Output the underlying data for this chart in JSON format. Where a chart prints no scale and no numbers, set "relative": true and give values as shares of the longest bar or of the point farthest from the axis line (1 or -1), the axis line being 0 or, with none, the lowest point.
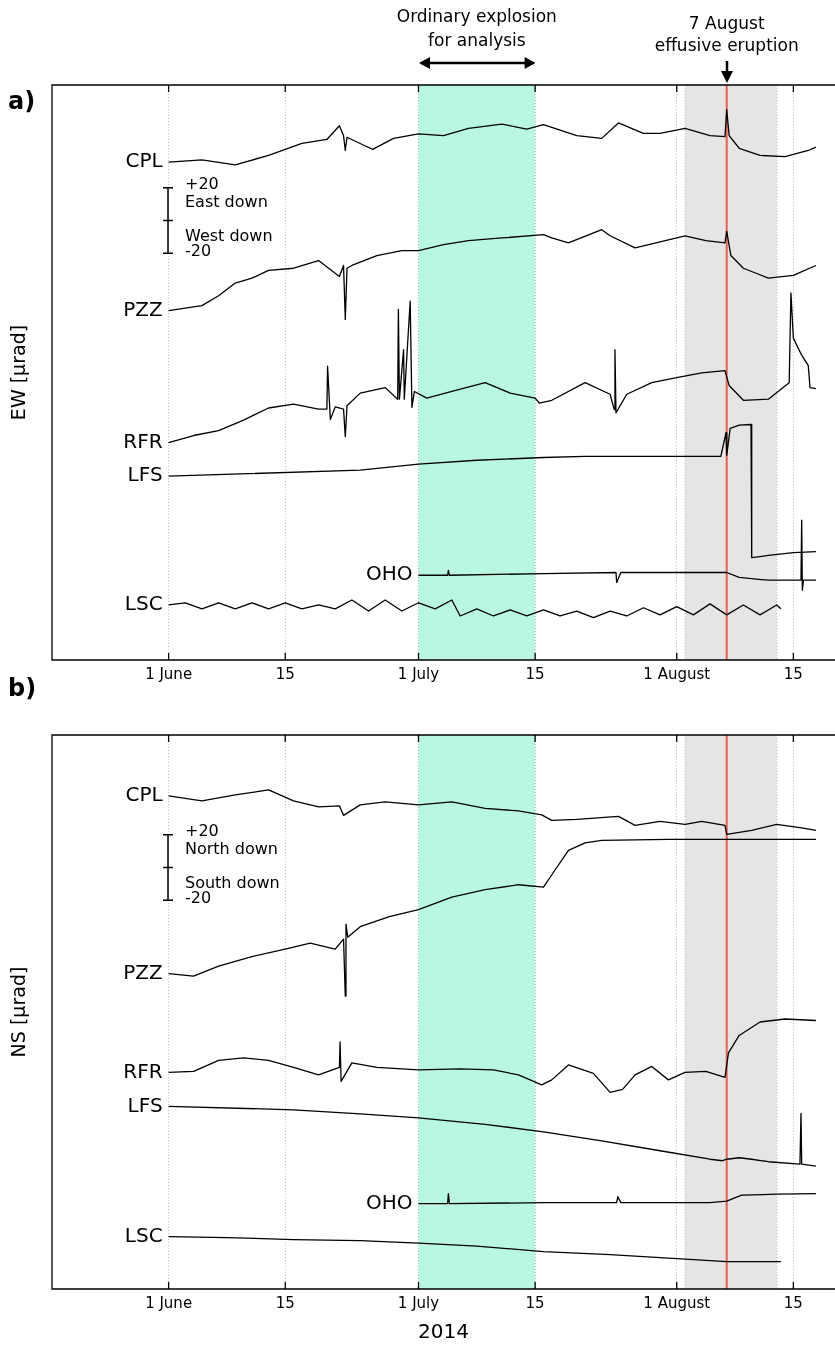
{
  "chart_data": [
    {
      "type": "line",
      "ylabel": "EW [μrad]",
      "annotations": [
        "a)",
        "+20",
        "East down",
        "West down",
        "-20"
      ],
      "relative": true,
      "grid": "x",
      "legend": false,
      "marker": "none",
      "xlim": [
        "2014-05-18",
        "2014-08-20"
      ],
      "xticks": [
        {
          "value": "2014-06-01",
          "label": "1 June"
        },
        {
          "value": "2014-06-15",
          "label": "15"
        },
        {
          "value": "2014-07-01",
          "label": "1 July"
        },
        {
          "value": "2014-07-15",
          "label": "15"
        },
        {
          "value": "2014-08-01",
          "label": "1 August"
        },
        {
          "value": "2014-08-15",
          "label": "15"
        }
      ],
      "bands": [
        {
          "axis": "x",
          "from": "2014-07-01",
          "to": "2014-07-15",
          "label": "Ordinary explosion for analysis",
          "color": "#b8f8e3"
        },
        {
          "axis": "x",
          "from": "2014-08-02",
          "to": "2014-08-13",
          "color": "#e5e5e5"
        }
      ],
      "ref_lines": [
        {
          "axis": "x",
          "value": "2014-08-07",
          "label": "7 August effusive eruption",
          "color": "#e8604c"
        }
      ],
      "series": [
        {
          "name": "CPL",
          "color": "#000000",
          "x": [
            "2014-06-01",
            "2014-06-05",
            "2014-06-09",
            "2014-06-13",
            "2014-06-17",
            "2014-06-20",
            "2014-06-21T12:00",
            "2014-06-22",
            "2014-06-22T05:00",
            "2014-06-22T10:00",
            "2014-06-24T12:00",
            "2014-06-25T12:00",
            "2014-06-28",
            "2014-07-01",
            "2014-07-04",
            "2014-07-07",
            "2014-07-11",
            "2014-07-14",
            "2014-07-16",
            "2014-07-20",
            "2014-07-23",
            "2014-07-25",
            "2014-07-28",
            "2014-07-30",
            "2014-08-02",
            "2014-08-05",
            "2014-08-06T19:00",
            "2014-08-07",
            "2014-08-07T07:00",
            "2014-08-08T12:00",
            "2014-08-11",
            "2014-08-14",
            "2014-08-16T19:00",
            "2014-08-17T17:00"
          ],
          "values": [
            0.905,
            0.909,
            0.9,
            0.917,
            0.939,
            0.946,
            0.971,
            0.953,
            0.926,
            0.95,
            0.935,
            0.928,
            0.948,
            0.956,
            0.953,
            0.966,
            0.974,
            0.965,
            0.973,
            0.953,
            0.948,
            0.976,
            0.957,
            0.957,
            0.966,
            0.953,
            0.951,
            1,
            0.953,
            0.93,
            0.917,
            0.915,
            0.926,
            0.932
          ]
        },
        {
          "name": "PZZ",
          "color": "#000000",
          "x": [
            "2014-06-01",
            "2014-06-05",
            "2014-06-07",
            "2014-06-09",
            "2014-06-11",
            "2014-06-13",
            "2014-06-16",
            "2014-06-19",
            "2014-06-21T12:00",
            "2014-06-22",
            "2014-06-22T05:00",
            "2014-06-22T10:00",
            "2014-06-23",
            "2014-06-26",
            "2014-06-29",
            "2014-07-01",
            "2014-07-04",
            "2014-07-07",
            "2014-07-11",
            "2014-07-16",
            "2014-07-17",
            "2014-07-19",
            "2014-07-23",
            "2014-07-24",
            "2014-07-27",
            "2014-07-30",
            "2014-08-02",
            "2014-08-04T12:00",
            "2014-08-06T19:00",
            "2014-08-07",
            "2014-08-07T12:00",
            "2014-08-09",
            "2014-08-12",
            "2014-08-15",
            "2014-08-17T17:00"
          ],
          "values": [
            0.635,
            0.644,
            0.662,
            0.685,
            0.694,
            0.708,
            0.712,
            0.726,
            0.697,
            0.717,
            0.619,
            0.712,
            0.717,
            0.735,
            0.744,
            0.744,
            0.755,
            0.762,
            0.767,
            0.773,
            0.767,
            0.758,
            0.782,
            0.771,
            0.749,
            0.76,
            0.771,
            0.762,
            0.758,
            0.779,
            0.735,
            0.712,
            0.694,
            0.699,
            0.717
          ]
        },
        {
          "name": "RFR",
          "color": "#000000",
          "x": [
            "2014-06-01",
            "2014-06-04",
            "2014-06-07",
            "2014-06-10",
            "2014-06-13",
            "2014-06-16",
            "2014-06-19",
            "2014-06-20",
            "2014-06-20T02:00",
            "2014-06-20T10:00",
            "2014-06-21",
            "2014-06-22",
            "2014-06-22T05:00",
            "2014-06-22T10:00",
            "2014-06-24",
            "2014-06-27",
            "2014-06-28T12:00",
            "2014-06-28T14:00",
            "2014-06-28T17:00",
            "2014-06-29T05:00",
            "2014-06-29T07:00",
            "2014-06-30",
            "2014-06-30T05:00",
            "2014-06-30T12:00",
            "2014-07-02",
            "2014-07-05",
            "2014-07-09",
            "2014-07-12",
            "2014-07-15",
            "2014-07-15T12:00",
            "2014-07-17",
            "2014-07-21",
            "2014-07-24",
            "2014-07-24T12:00",
            "2014-07-24T14:00",
            "2014-07-24T17:00",
            "2014-07-26",
            "2014-07-29",
            "2014-08-01",
            "2014-08-04",
            "2014-08-06T19:00",
            "2014-08-07T07:00",
            "2014-08-09",
            "2014-08-12",
            "2014-08-14T12:00",
            "2014-08-14T17:00",
            "2014-08-15",
            "2014-08-16",
            "2014-08-16T19:00",
            "2014-08-17",
            "2014-08-17T17:00"
          ],
          "values": [
            0.395,
            0.408,
            0.417,
            0.436,
            0.458,
            0.465,
            0.456,
            0.456,
            0.534,
            0.437,
            0.46,
            0.456,
            0.406,
            0.462,
            0.485,
            0.495,
            0.474,
            0.637,
            0.474,
            0.564,
            0.474,
            0.652,
            0.459,
            0.488,
            0.476,
            0.488,
            0.504,
            0.485,
            0.476,
            0.467,
            0.472,
            0.504,
            0.483,
            0.455,
            0.564,
            0.449,
            0.483,
            0.504,
            0.513,
            0.522,
            0.526,
            0.499,
            0.472,
            0.474,
            0.504,
            0.667,
            0.585,
            0.554,
            0.535,
            0.495,
            0.493
          ]
        },
        {
          "name": "LFS",
          "color": "#000000",
          "x": [
            "2014-06-01",
            "2014-06-24",
            "2014-07-01",
            "2014-07-08",
            "2014-07-16",
            "2014-07-21",
            "2014-08-06T07:00",
            "2014-08-06T22:00",
            "2014-08-07",
            "2014-08-07T10:00",
            "2014-08-08T12:00",
            "2014-08-09T22:00",
            "2014-08-10",
            "2014-08-12",
            "2014-08-15",
            "2014-08-17T17:00"
          ],
          "values": [
            0.334,
            0.345,
            0.356,
            0.363,
            0.368,
            0.37,
            0.37,
            0.413,
            0.372,
            0.421,
            0.427,
            0.428,
            0.186,
            0.19,
            0.195,
            0.197
          ]
        },
        {
          "name": "OHO",
          "color": "#000000",
          "x": [
            "2014-07-01",
            "2014-07-04T12:00",
            "2014-07-04T14:00",
            "2014-07-04T17:00",
            "2014-07-16",
            "2014-07-24T17:00",
            "2014-07-24T19:00",
            "2014-07-25T07:00",
            "2014-08-04",
            "2014-08-07",
            "2014-08-08T12:00",
            "2014-08-12",
            "2014-08-15T22:00",
            "2014-08-16",
            "2014-08-16T02:00",
            "2014-08-16T05:00",
            "2014-08-17T17:00"
          ],
          "values": [
            0.154,
            0.154,
            0.163,
            0.154,
            0.157,
            0.159,
            0.141,
            0.159,
            0.159,
            0.159,
            0.15,
            0.145,
            0.145,
            0.254,
            0.127,
            0.145,
            0.145
          ]
        },
        {
          "name": "LSC",
          "color": "#000000",
          "x": [
            "2014-06-01",
            "2014-06-03",
            "2014-06-05",
            "2014-06-07",
            "2014-06-09",
            "2014-06-11",
            "2014-06-13",
            "2014-06-15",
            "2014-06-17",
            "2014-06-19",
            "2014-06-21",
            "2014-06-23",
            "2014-06-25",
            "2014-06-27",
            "2014-06-29",
            "2014-07-01",
            "2014-07-03",
            "2014-07-05",
            "2014-07-06",
            "2014-07-08",
            "2014-07-10",
            "2014-07-12",
            "2014-07-14",
            "2014-07-16",
            "2014-07-18",
            "2014-07-20",
            "2014-07-22",
            "2014-07-24",
            "2014-07-26",
            "2014-07-28",
            "2014-07-30",
            "2014-08-01",
            "2014-08-03",
            "2014-08-05",
            "2014-08-07",
            "2014-08-09",
            "2014-08-11",
            "2014-08-13",
            "2014-08-13T12:00"
          ],
          "values": [
            0.1,
            0.104,
            0.093,
            0.104,
            0.093,
            0.104,
            0.093,
            0.104,
            0.093,
            0.1,
            0.093,
            0.109,
            0.089,
            0.109,
            0.089,
            0.104,
            0.093,
            0.109,
            0.08,
            0.093,
            0.08,
            0.091,
            0.08,
            0.091,
            0.08,
            0.089,
            0.077,
            0.089,
            0.08,
            0.095,
            0.082,
            0.097,
            0.082,
            0.102,
            0.082,
            0.1,
            0.082,
            0.1,
            0.093
          ]
        }
      ]
    },
    {
      "type": "line",
      "ylabel": "NS [μrad]",
      "xlabel": "2014",
      "annotations": [
        "b)",
        "+20",
        "North down",
        "South down",
        "-20"
      ],
      "relative": true,
      "grid": "x",
      "legend": false,
      "marker": "none",
      "xlim": [
        "2014-05-18",
        "2014-08-20"
      ],
      "xticks": [
        {
          "value": "2014-06-01",
          "label": "1 June"
        },
        {
          "value": "2014-06-15",
          "label": "15"
        },
        {
          "value": "2014-07-01",
          "label": "1 July"
        },
        {
          "value": "2014-07-15",
          "label": "15"
        },
        {
          "value": "2014-08-01",
          "label": "1 August"
        },
        {
          "value": "2014-08-15",
          "label": "15"
        }
      ],
      "bands": [
        {
          "axis": "x",
          "from": "2014-07-01",
          "to": "2014-07-15",
          "color": "#b8f8e3"
        },
        {
          "axis": "x",
          "from": "2014-08-02",
          "to": "2014-08-13",
          "color": "#e5e5e5"
        }
      ],
      "ref_lines": [
        {
          "axis": "x",
          "value": "2014-08-07",
          "color": "#e8604c"
        }
      ],
      "series": [
        {
          "name": "CPL",
          "color": "#000000",
          "x": [
            "2014-06-01",
            "2014-06-05",
            "2014-06-09",
            "2014-06-13",
            "2014-06-16",
            "2014-06-19",
            "2014-06-21T12:00",
            "2014-06-22",
            "2014-06-24",
            "2014-06-27",
            "2014-07-01",
            "2014-07-05",
            "2014-07-09",
            "2014-07-13",
            "2014-07-15T19:00",
            "2014-07-17",
            "2014-07-20",
            "2014-07-25",
            "2014-07-27",
            "2014-07-30",
            "2014-08-02",
            "2014-08-04",
            "2014-08-06T19:00",
            "2014-08-07",
            "2014-08-10",
            "2014-08-13",
            "2014-08-16",
            "2014-08-17T17:00"
          ],
          "values": [
            0.988,
            0.978,
            0.99,
            1,
            0.978,
            0.966,
            0.968,
            0.949,
            0.97,
            0.976,
            0.97,
            0.976,
            0.963,
            0.958,
            0.95,
            0.939,
            0.941,
            0.947,
            0.929,
            0.937,
            0.931,
            0.937,
            0.929,
            0.911,
            0.919,
            0.931,
            0.924,
            0.919
          ]
        },
        {
          "name": "PZZ",
          "color": "#000000",
          "x": [
            "2014-06-01",
            "2014-06-04",
            "2014-06-07",
            "2014-06-11",
            "2014-06-15",
            "2014-06-18",
            "2014-06-21",
            "2014-06-22",
            "2014-06-22T05:00",
            "2014-06-22T07:00",
            "2014-06-22T12:00",
            "2014-06-24",
            "2014-06-27T12:00",
            "2014-07-01",
            "2014-07-05",
            "2014-07-09",
            "2014-07-13",
            "2014-07-16",
            "2014-07-17",
            "2014-07-19",
            "2014-07-21",
            "2014-07-23",
            "2014-07-31",
            "2014-08-17T17:00"
          ],
          "values": [
            0.632,
            0.627,
            0.647,
            0.666,
            0.681,
            0.693,
            0.681,
            0.701,
            0.587,
            0.731,
            0.705,
            0.726,
            0.746,
            0.76,
            0.785,
            0.8,
            0.81,
            0.805,
            0.83,
            0.879,
            0.894,
            0.899,
            0.901,
            0.901
          ]
        },
        {
          "name": "RFR",
          "color": "#000000",
          "x": [
            "2014-06-01",
            "2014-06-04",
            "2014-06-07",
            "2014-06-10",
            "2014-06-13",
            "2014-06-16",
            "2014-06-19",
            "2014-06-21T12:00",
            "2014-06-21T14:00",
            "2014-06-21T17:00",
            "2014-06-23",
            "2014-06-26",
            "2014-07-01",
            "2014-07-06",
            "2014-07-10",
            "2014-07-13",
            "2014-07-15T19:00",
            "2014-07-17",
            "2014-07-19",
            "2014-07-22",
            "2014-07-24",
            "2014-07-25T12:00",
            "2014-07-27",
            "2014-07-29",
            "2014-07-31",
            "2014-08-02",
            "2014-08-04T12:00",
            "2014-08-06T19:00",
            "2014-08-07T05:00",
            "2014-08-08T12:00",
            "2014-08-11",
            "2014-08-14",
            "2014-08-17T17:00"
          ],
          "values": [
            0.434,
            0.436,
            0.458,
            0.463,
            0.458,
            0.444,
            0.429,
            0.444,
            0.495,
            0.416,
            0.453,
            0.444,
            0.439,
            0.441,
            0.439,
            0.429,
            0.409,
            0.419,
            0.449,
            0.432,
            0.394,
            0.4,
            0.429,
            0.446,
            0.419,
            0.434,
            0.436,
            0.424,
            0.473,
            0.508,
            0.535,
            0.541,
            0.538
          ]
        },
        {
          "name": "LFS",
          "color": "#000000",
          "x": [
            "2014-06-01",
            "2014-06-16",
            "2014-06-24",
            "2014-07-01",
            "2014-07-09",
            "2014-07-16",
            "2014-07-23",
            "2014-07-30",
            "2014-08-05",
            "2014-08-06T12:00",
            "2014-08-07",
            "2014-08-08T12:00",
            "2014-08-10",
            "2014-08-12",
            "2014-08-15T19:00",
            "2014-08-15T22:00",
            "2014-08-16",
            "2014-08-17T17:00"
          ],
          "values": [
            0.366,
            0.359,
            0.351,
            0.343,
            0.33,
            0.315,
            0.297,
            0.277,
            0.26,
            0.257,
            0.26,
            0.263,
            0.26,
            0.255,
            0.25,
            0.352,
            0.25,
            0.246
          ]
        },
        {
          "name": "OHO",
          "color": "#000000",
          "x": [
            "2014-07-01",
            "2014-07-04T12:00",
            "2014-07-04T14:00",
            "2014-07-04T17:00",
            "2014-07-16",
            "2014-07-24T19:00",
            "2014-07-24T22:00",
            "2014-07-25T07:00",
            "2014-08-05",
            "2014-08-07",
            "2014-08-08T19:00",
            "2014-08-13",
            "2014-08-17T17:00"
          ],
          "values": [
            0.171,
            0.171,
            0.191,
            0.171,
            0.173,
            0.173,
            0.185,
            0.173,
            0.173,
            0.176,
            0.188,
            0.19,
            0.191
          ]
        },
        {
          "name": "LSC",
          "color": "#000000",
          "x": [
            "2014-06-01",
            "2014-06-08",
            "2014-06-16",
            "2014-06-24",
            "2014-07-01",
            "2014-07-08",
            "2014-07-16",
            "2014-07-24",
            "2014-07-31",
            "2014-08-07",
            "2014-08-13T12:00"
          ],
          "values": [
            0.105,
            0.103,
            0.099,
            0.097,
            0.092,
            0.086,
            0.075,
            0.069,
            0.062,
            0.055,
            0.055
          ]
        }
      ]
    }
  ]
}
